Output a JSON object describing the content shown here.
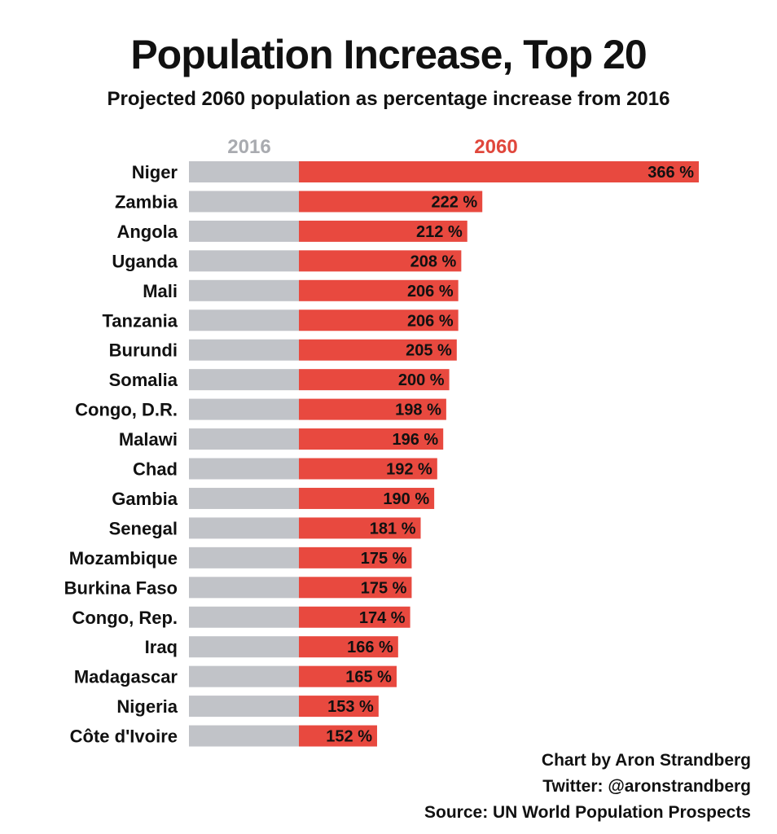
{
  "header": {
    "title": "Population Increase, Top 20",
    "subtitle": "Projected 2060 population as percentage increase from 2016"
  },
  "chart_data": {
    "type": "bar",
    "orientation": "horizontal",
    "title": "Population Increase, Top 20",
    "subtitle": "Projected 2060 population as percentage increase from 2016",
    "baseline_value": 100,
    "legend": {
      "baseline": "2016",
      "projection": "2060"
    },
    "unit_suffix": " %",
    "categories": [
      "Niger",
      "Zambia",
      "Angola",
      "Uganda",
      "Mali",
      "Tanzania",
      "Burundi",
      "Somalia",
      "Congo, D.R.",
      "Malawi",
      "Chad",
      "Gambia",
      "Senegal",
      "Mozambique",
      "Burkina Faso",
      "Congo, Rep.",
      "Iraq",
      "Madagascar",
      "Nigeria",
      "Côte d'Ivoire"
    ],
    "values": [
      366,
      222,
      212,
      208,
      206,
      206,
      205,
      200,
      198,
      196,
      192,
      190,
      181,
      175,
      175,
      174,
      166,
      165,
      153,
      152
    ],
    "colors": {
      "baseline": "#c1c3c8",
      "projection": "#e8493f",
      "text": "#111111",
      "legend_baseline": "#a9abb0",
      "legend_projection": "#e0473c"
    }
  },
  "credits": {
    "line1": "Chart by Aron Strandberg",
    "line2": "Twitter: @aronstrandberg",
    "line3": "Source: UN World Population Prospects"
  }
}
